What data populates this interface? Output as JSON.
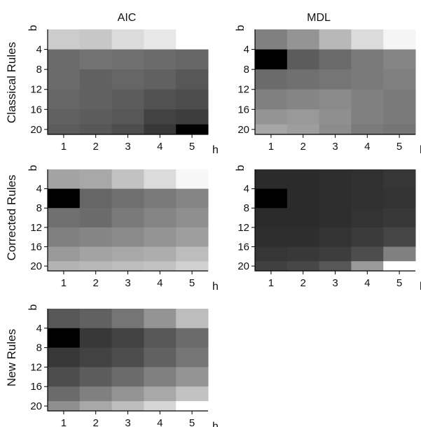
{
  "figure": {
    "column_titles": [
      "AIC",
      "MDL"
    ],
    "row_labels": [
      "Classical Rules",
      "Corrected Rules",
      "New Rules"
    ]
  },
  "chart_data": [
    {
      "type": "heatmap",
      "title": "AIC",
      "row": "Classical Rules",
      "xlabel": "h",
      "ylabel": "b",
      "x_ticks": [
        1,
        2,
        3,
        4,
        5
      ],
      "y_ticks": [
        4,
        8,
        12,
        16,
        20
      ],
      "x": [
        1,
        2,
        3,
        4,
        5
      ],
      "y": [
        2,
        6,
        10,
        14,
        18,
        20
      ],
      "value_range": [
        0,
        1
      ],
      "colormap": "gray",
      "values": [
        [
          0.8,
          0.78,
          0.86,
          0.91,
          1.0
        ],
        [
          0.42,
          0.45,
          0.44,
          0.42,
          0.4
        ],
        [
          0.42,
          0.38,
          0.4,
          0.38,
          0.34
        ],
        [
          0.4,
          0.38,
          0.36,
          0.32,
          0.3
        ],
        [
          0.38,
          0.36,
          0.34,
          0.26,
          0.24
        ],
        [
          0.36,
          0.34,
          0.3,
          0.22,
          0.0
        ]
      ]
    },
    {
      "type": "heatmap",
      "title": "MDL",
      "row": "Classical Rules",
      "xlabel": "h",
      "ylabel": "b",
      "x_ticks": [
        1,
        2,
        3,
        4,
        5
      ],
      "y_ticks": [
        4,
        8,
        12,
        16,
        20
      ],
      "x": [
        1,
        2,
        3,
        4,
        5
      ],
      "y": [
        2,
        6,
        10,
        14,
        18,
        20
      ],
      "value_range": [
        0,
        1
      ],
      "colormap": "gray",
      "values": [
        [
          0.5,
          0.58,
          0.72,
          0.86,
          0.96
        ],
        [
          0.0,
          0.36,
          0.42,
          0.48,
          0.52
        ],
        [
          0.42,
          0.44,
          0.46,
          0.48,
          0.5
        ],
        [
          0.5,
          0.52,
          0.54,
          0.5,
          0.48
        ],
        [
          0.58,
          0.6,
          0.56,
          0.5,
          0.48
        ],
        [
          0.65,
          0.62,
          0.55,
          0.48,
          0.46
        ]
      ]
    },
    {
      "type": "heatmap",
      "title": "",
      "row": "Corrected Rules",
      "xlabel": "h",
      "ylabel": "b",
      "x_ticks": [
        1,
        2,
        3,
        4,
        5
      ],
      "y_ticks": [
        4,
        8,
        12,
        16,
        20
      ],
      "x": [
        1,
        2,
        3,
        4,
        5
      ],
      "y": [
        2,
        6,
        10,
        14,
        18,
        20
      ],
      "value_range": [
        0,
        1
      ],
      "colormap": "gray",
      "values": [
        [
          0.64,
          0.66,
          0.76,
          0.86,
          0.97
        ],
        [
          0.0,
          0.4,
          0.44,
          0.48,
          0.52
        ],
        [
          0.44,
          0.42,
          0.48,
          0.52,
          0.56
        ],
        [
          0.5,
          0.52,
          0.54,
          0.58,
          0.62
        ],
        [
          0.6,
          0.64,
          0.66,
          0.68,
          0.74
        ],
        [
          0.7,
          0.72,
          0.74,
          0.76,
          0.82
        ]
      ]
    },
    {
      "type": "heatmap",
      "title": "",
      "row": "Corrected Rules",
      "xlabel": "h",
      "ylabel": "b",
      "x_ticks": [
        1,
        2,
        3,
        4,
        5
      ],
      "y_ticks": [
        4,
        8,
        12,
        16,
        20
      ],
      "x": [
        1,
        2,
        3,
        4,
        5
      ],
      "y": [
        2,
        6,
        10,
        14,
        18,
        20
      ],
      "value_range": [
        0,
        1
      ],
      "colormap": "gray",
      "values": [
        [
          0.17,
          0.17,
          0.18,
          0.19,
          0.21
        ],
        [
          0.0,
          0.17,
          0.18,
          0.19,
          0.2
        ],
        [
          0.17,
          0.17,
          0.18,
          0.2,
          0.22
        ],
        [
          0.18,
          0.18,
          0.2,
          0.23,
          0.27
        ],
        [
          0.21,
          0.22,
          0.24,
          0.3,
          0.5
        ],
        [
          0.25,
          0.28,
          0.34,
          0.6,
          1.0
        ]
      ]
    },
    {
      "type": "heatmap",
      "title": "",
      "row": "New Rules",
      "xlabel": "h",
      "ylabel": "b",
      "x_ticks": [
        1,
        2,
        3,
        4,
        5
      ],
      "y_ticks": [
        4,
        8,
        12,
        16,
        20
      ],
      "x": [
        1,
        2,
        3,
        4,
        5
      ],
      "y": [
        2,
        6,
        10,
        14,
        18,
        20
      ],
      "value_range": [
        0,
        1
      ],
      "colormap": "gray",
      "values": [
        [
          0.34,
          0.38,
          0.46,
          0.58,
          0.74
        ],
        [
          0.0,
          0.22,
          0.26,
          0.34,
          0.42
        ],
        [
          0.22,
          0.26,
          0.3,
          0.38,
          0.46
        ],
        [
          0.3,
          0.36,
          0.42,
          0.5,
          0.58
        ],
        [
          0.42,
          0.5,
          0.58,
          0.66,
          0.76
        ],
        [
          0.56,
          0.66,
          0.74,
          0.84,
          1.0
        ]
      ]
    }
  ]
}
